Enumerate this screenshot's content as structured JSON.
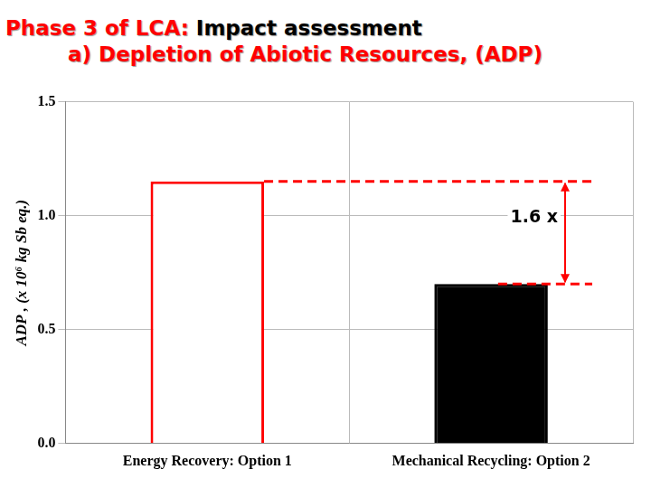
{
  "chart_data": {
    "type": "bar",
    "title": "Phase 3 of LCA: Impact assessment",
    "subtitle": "a) Depletion of Abiotic Resources, (ADP)",
    "y_label": "ADP , (x 10⁶ kg Sb eq.)",
    "categories": [
      "Energy Recovery: Option 1",
      "Mechanical Recycling: Option 2"
    ],
    "values": [
      1.15,
      0.7
    ],
    "colors": [
      "#ffffff",
      "#000000"
    ],
    "ylim": [
      0,
      1.5
    ],
    "yticks": [
      {
        "value": 0,
        "label": "0.0"
      },
      {
        "value": 0.5,
        "label": "0.5"
      },
      {
        "value": 1,
        "label": "1.0"
      },
      {
        "value": 1.5,
        "label": "1.5"
      }
    ],
    "grid": true,
    "annotations": [
      {
        "text": "1.6 x"
      }
    ]
  }
}
